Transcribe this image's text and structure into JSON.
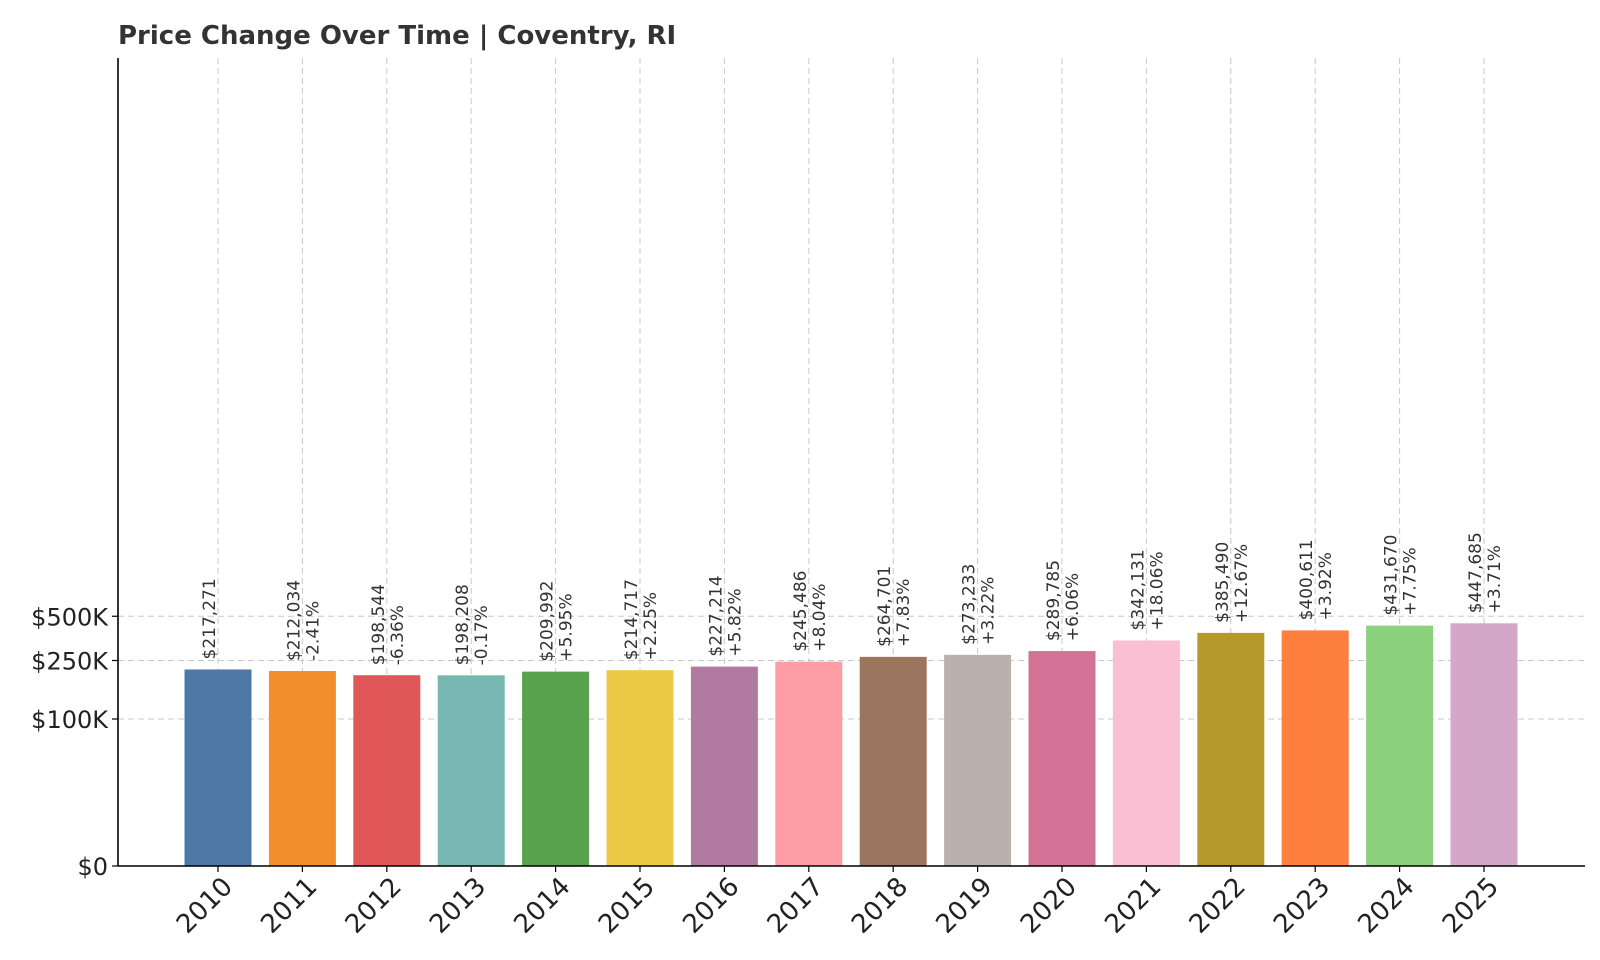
{
  "chart_data": {
    "type": "bar",
    "title": "Price Change Over Time | Coventry, RI",
    "xlabel": "",
    "ylabel": "",
    "scale": "symlog",
    "ylim": [
      0,
      550000
    ],
    "yticks": [
      {
        "value": 0,
        "label": "$0"
      },
      {
        "value": 100000,
        "label": "$100K"
      },
      {
        "value": 250000,
        "label": "$250K"
      },
      {
        "value": 500000,
        "label": "$500K"
      }
    ],
    "grid": true,
    "categories": [
      "2010",
      "2011",
      "2012",
      "2013",
      "2014",
      "2015",
      "2016",
      "2017",
      "2018",
      "2019",
      "2020",
      "2021",
      "2022",
      "2023",
      "2024",
      "2025"
    ],
    "values": [
      217271,
      212034,
      198544,
      198208,
      209992,
      214717,
      227214,
      245486,
      264701,
      273233,
      289785,
      342131,
      385490,
      400611,
      431670,
      447685
    ],
    "value_labels": [
      "$217,271",
      "$212,034",
      "$198,544",
      "$198,208",
      "$209,992",
      "$214,717",
      "$227,214",
      "$245,486",
      "$264,701",
      "$273,233",
      "$289,785",
      "$342,131",
      "$385,490",
      "$400,611",
      "$431,670",
      "$447,685"
    ],
    "change_labels": [
      "",
      "-2.41%",
      "-6.36%",
      "-0.17%",
      "+5.95%",
      "+2.25%",
      "+5.82%",
      "+8.04%",
      "+7.83%",
      "+3.22%",
      "+6.06%",
      "+18.06%",
      "+12.67%",
      "+3.92%",
      "+7.75%",
      "+3.71%"
    ],
    "colors": [
      "#4e79a7",
      "#f28e2b",
      "#e15759",
      "#76b7b2",
      "#59a14f",
      "#edc948",
      "#b07aa1",
      "#ff9da7",
      "#9c755f",
      "#bab0ac",
      "#d37295",
      "#fabfd2",
      "#b6992d",
      "#ff7f3f",
      "#8cd17d",
      "#d4a6c8"
    ]
  }
}
